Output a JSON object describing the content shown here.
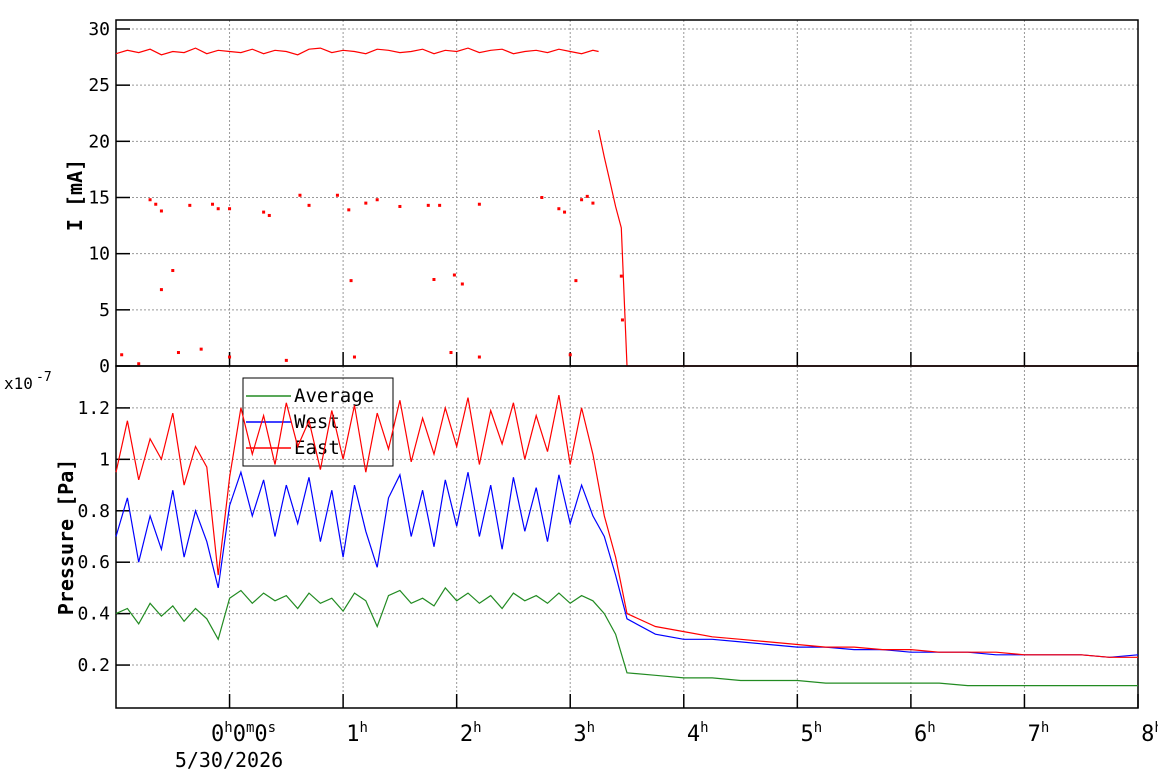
{
  "chart_data": [
    {
      "type": "scatter",
      "ylabel": "I [mA]",
      "xlim": [
        -1,
        8
      ],
      "ylim": [
        0,
        30.8
      ],
      "xticks": [
        0,
        1,
        2,
        3,
        4,
        5,
        6,
        7,
        8
      ],
      "yticks": [
        0,
        5,
        10,
        15,
        20,
        25,
        30
      ],
      "grid": true,
      "series": [
        {
          "color": "#ff0000",
          "mode": "line",
          "x": [
            -1,
            -0.9,
            -0.8,
            -0.7,
            -0.6,
            -0.5,
            -0.4,
            -0.3,
            -0.2,
            -0.1,
            0,
            0.1,
            0.2,
            0.3,
            0.4,
            0.5,
            0.6,
            0.7,
            0.8,
            0.9,
            1,
            1.1,
            1.2,
            1.3,
            1.4,
            1.5,
            1.6,
            1.7,
            1.8,
            1.9,
            2,
            2.1,
            2.2,
            2.3,
            2.4,
            2.5,
            2.6,
            2.7,
            2.8,
            2.9,
            3,
            3.1,
            3.2,
            3.25
          ],
          "values": [
            27.8,
            28.1,
            27.9,
            28.2,
            27.7,
            28.0,
            27.9,
            28.3,
            27.8,
            28.1,
            28.0,
            27.9,
            28.2,
            27.8,
            28.1,
            28.0,
            27.7,
            28.2,
            28.3,
            27.9,
            28.1,
            28.0,
            27.8,
            28.2,
            28.1,
            27.9,
            28.0,
            28.2,
            27.8,
            28.1,
            28.0,
            28.3,
            27.9,
            28.1,
            28.2,
            27.8,
            28.0,
            28.1,
            27.9,
            28.2,
            28.0,
            27.8,
            28.1,
            28.0
          ]
        },
        {
          "color": "#ff0000",
          "mode": "line",
          "x": [
            3.25,
            3.3,
            3.35,
            3.4,
            3.45,
            3.5,
            8
          ],
          "values": [
            21,
            18.6,
            16.4,
            14.2,
            12.3,
            0,
            0
          ]
        },
        {
          "color": "#ff0000",
          "mode": "markers",
          "x": [
            -0.7,
            -0.65,
            -0.6,
            -0.6,
            -0.5,
            -0.45,
            -0.35,
            -0.25,
            -0.15,
            -0.1,
            0,
            0.3,
            0.35,
            0.62,
            0.7,
            0.95,
            1.05,
            1.07,
            1.2,
            1.3,
            1.5,
            1.75,
            1.8,
            1.85,
            1.98,
            2.05,
            2.2,
            2.75,
            2.9,
            2.95,
            3.05,
            3.1,
            3.15,
            3.2,
            3.45,
            3.46,
            -0.95,
            0,
            1.1,
            1.95,
            2.2,
            3,
            0.5,
            -0.8
          ],
          "values": [
            14.8,
            14.4,
            13.8,
            6.8,
            8.5,
            1.2,
            14.3,
            1.5,
            14.4,
            14,
            14,
            13.7,
            13.4,
            15.2,
            14.3,
            15.2,
            13.9,
            7.6,
            14.5,
            14.8,
            14.2,
            14.3,
            7.7,
            14.3,
            8.1,
            7.3,
            14.4,
            15,
            14,
            13.7,
            7.6,
            14.8,
            15.1,
            14.5,
            8,
            4.1,
            1,
            0.8,
            0.8,
            1.2,
            0.8,
            1,
            0.5,
            0.2
          ]
        }
      ]
    },
    {
      "type": "line",
      "ylabel": "Pressure [Pa]",
      "y_scale_base": "x10",
      "y_scale_exponent": "-7",
      "x_date_label": "5/30/2026",
      "xlim": [
        -1,
        8
      ],
      "ylim": [
        0.033,
        1.363
      ],
      "grid": true,
      "legend": "top-left",
      "xticks": [
        {
          "value": 0,
          "label": "0h0m0s"
        },
        {
          "value": 1,
          "label": "1h"
        },
        {
          "value": 2,
          "label": "2h"
        },
        {
          "value": 3,
          "label": "3h"
        },
        {
          "value": 4,
          "label": "4h"
        },
        {
          "value": 5,
          "label": "5h"
        },
        {
          "value": 6,
          "label": "6h"
        },
        {
          "value": 7,
          "label": "7h"
        },
        {
          "value": 8,
          "label": "8h"
        }
      ],
      "yticks": [
        0.2,
        0.4,
        0.6,
        0.8,
        1,
        1.2
      ],
      "x": [
        -1,
        -0.9,
        -0.8,
        -0.7,
        -0.6,
        -0.5,
        -0.4,
        -0.3,
        -0.2,
        -0.1,
        0,
        0.1,
        0.2,
        0.3,
        0.4,
        0.5,
        0.6,
        0.7,
        0.8,
        0.9,
        1,
        1.1,
        1.2,
        1.3,
        1.4,
        1.5,
        1.6,
        1.7,
        1.8,
        1.9,
        2,
        2.1,
        2.2,
        2.3,
        2.4,
        2.5,
        2.6,
        2.7,
        2.8,
        2.9,
        3,
        3.1,
        3.2,
        3.3,
        3.4,
        3.5,
        3.75,
        4,
        4.25,
        4.5,
        4.75,
        5,
        5.25,
        5.5,
        5.75,
        6,
        6.25,
        6.5,
        6.75,
        7,
        7.25,
        7.5,
        7.75,
        8
      ],
      "series": [
        {
          "name": "Average",
          "color": "#228b22",
          "values": [
            0.4,
            0.42,
            0.36,
            0.44,
            0.39,
            0.43,
            0.37,
            0.42,
            0.38,
            0.3,
            0.46,
            0.49,
            0.44,
            0.48,
            0.45,
            0.47,
            0.42,
            0.48,
            0.44,
            0.46,
            0.41,
            0.48,
            0.45,
            0.35,
            0.47,
            0.49,
            0.44,
            0.46,
            0.43,
            0.5,
            0.45,
            0.48,
            0.44,
            0.47,
            0.42,
            0.48,
            0.45,
            0.47,
            0.44,
            0.48,
            0.44,
            0.47,
            0.45,
            0.4,
            0.32,
            0.17,
            0.16,
            0.15,
            0.15,
            0.14,
            0.14,
            0.14,
            0.13,
            0.13,
            0.13,
            0.13,
            0.13,
            0.12,
            0.12,
            0.12,
            0.12,
            0.12,
            0.12,
            0.12
          ]
        },
        {
          "name": "West",
          "color": "#0000ff",
          "values": [
            0.7,
            0.85,
            0.6,
            0.78,
            0.65,
            0.88,
            0.62,
            0.8,
            0.68,
            0.5,
            0.82,
            0.95,
            0.78,
            0.92,
            0.7,
            0.9,
            0.75,
            0.93,
            0.68,
            0.88,
            0.62,
            0.9,
            0.72,
            0.58,
            0.85,
            0.94,
            0.7,
            0.88,
            0.66,
            0.92,
            0.74,
            0.95,
            0.7,
            0.9,
            0.65,
            0.93,
            0.72,
            0.89,
            0.68,
            0.94,
            0.75,
            0.9,
            0.78,
            0.7,
            0.55,
            0.38,
            0.32,
            0.3,
            0.3,
            0.29,
            0.28,
            0.27,
            0.27,
            0.26,
            0.26,
            0.25,
            0.25,
            0.25,
            0.24,
            0.24,
            0.24,
            0.24,
            0.23,
            0.24
          ]
        },
        {
          "name": "East",
          "color": "#ff0000",
          "values": [
            0.95,
            1.15,
            0.92,
            1.08,
            1.0,
            1.18,
            0.9,
            1.05,
            0.97,
            0.55,
            0.93,
            1.2,
            1.02,
            1.17,
            0.98,
            1.22,
            1.05,
            1.15,
            0.96,
            1.19,
            1.0,
            1.21,
            0.95,
            1.18,
            1.04,
            1.23,
            0.99,
            1.16,
            1.02,
            1.2,
            1.05,
            1.24,
            0.98,
            1.19,
            1.06,
            1.22,
            1.0,
            1.17,
            1.03,
            1.25,
            0.98,
            1.2,
            1.02,
            0.78,
            0.62,
            0.4,
            0.35,
            0.33,
            0.31,
            0.3,
            0.29,
            0.28,
            0.27,
            0.27,
            0.26,
            0.26,
            0.25,
            0.25,
            0.25,
            0.24,
            0.24,
            0.24,
            0.23,
            0.23
          ]
        }
      ]
    }
  ]
}
